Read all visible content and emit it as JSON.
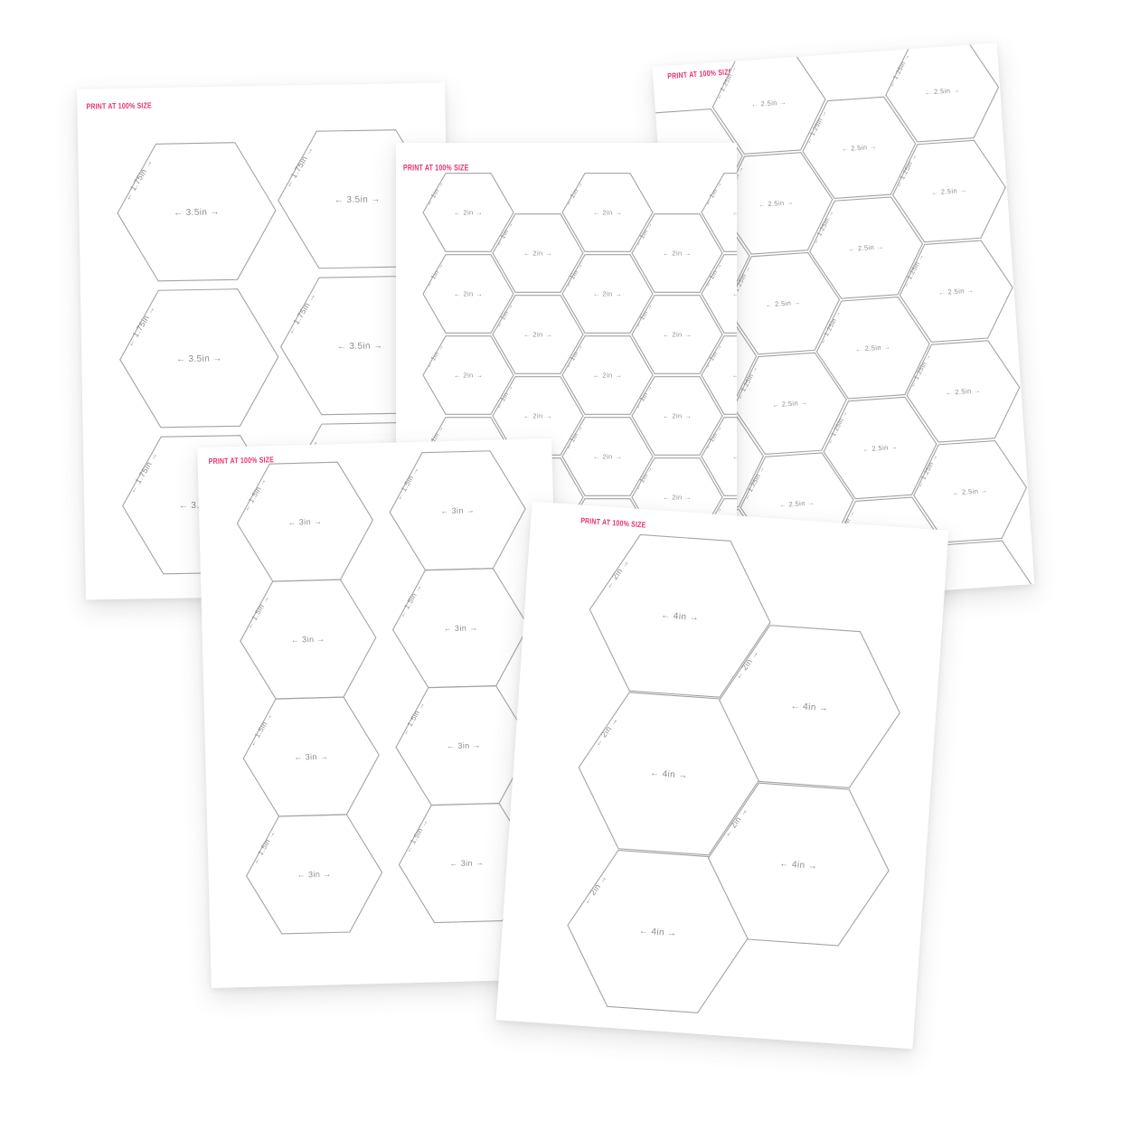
{
  "background_color": "#ffffff",
  "page_color": "#ffffff",
  "print_label": "PRINT AT 100% SIZE",
  "print_label_color": "#e8316b",
  "outline_color": "#a3a3a3",
  "label_color": "#8c8c8c",
  "pages": [
    {
      "id": "hexagon-template-3.5in",
      "width_label": "← 3.5in →",
      "side_label": "← 1.75in →"
    },
    {
      "id": "hexagon-template-2in",
      "width_label": "← 2in →",
      "side_label": "← 1in →"
    },
    {
      "id": "hexagon-template-2.5in",
      "width_label": "← 2.5in →",
      "side_label": "← 1.25in →"
    },
    {
      "id": "hexagon-template-3in",
      "width_label": "← 3in →",
      "side_label": "← 1.5in →"
    },
    {
      "id": "hexagon-template-4in",
      "width_label": "← 4in →",
      "side_label": "← 2in →"
    }
  ]
}
